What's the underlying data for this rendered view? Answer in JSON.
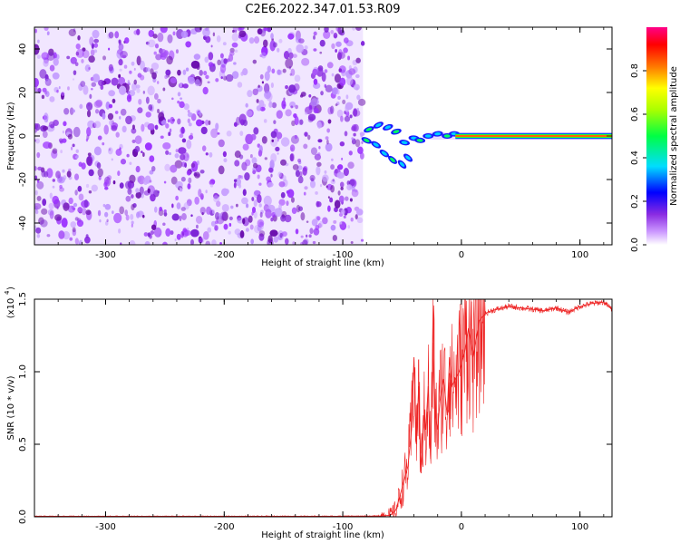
{
  "title": "C2E6.2022.347.01.53.R09",
  "colors": {
    "snr_line": "#ee2222",
    "noise_purple": "#8a2be2",
    "axis": "#000000"
  },
  "chart_data": [
    {
      "type": "heatmap",
      "xlabel": "Height of straight line (km)",
      "ylabel": "Frequency (Hz)",
      "xlim": [
        -360,
        127
      ],
      "ylim": [
        -50,
        50
      ],
      "xticks": [
        -300,
        -200,
        -100,
        0,
        100
      ],
      "yticks": [
        -40,
        -20,
        0,
        20,
        40
      ],
      "xtick_labels": [
        "-300",
        "-200",
        "-100",
        "0",
        "100"
      ],
      "ytick_labels": [
        "-40",
        "-20",
        "0",
        "20",
        "40"
      ],
      "noise_region_x": [
        -360,
        -83
      ],
      "signal_line": {
        "x_from": -5,
        "x_to": 127,
        "freq": 0
      },
      "colorbar": {
        "label": "Normalized spectral amplitude",
        "range": [
          0.0,
          1.0
        ],
        "ticks": [
          0.0,
          0.2,
          0.4,
          0.6,
          0.8
        ],
        "tick_labels": [
          "0.0",
          "0.2",
          "0.4",
          "0.6",
          "0.8"
        ],
        "colormap": "rainbow"
      }
    },
    {
      "type": "line",
      "xlabel": "Height of straight line (km)",
      "ylabel": "SNR (10 * v/v)",
      "y_multiplier": "(x10",
      "y_multiplier_exp": "4",
      "xlim": [
        -360,
        127
      ],
      "ylim": [
        0,
        1.5
      ],
      "xticks": [
        -300,
        -200,
        -100,
        0,
        100
      ],
      "yticks": [
        0.0,
        0.5,
        1.0,
        1.5
      ],
      "xtick_labels": [
        "-300",
        "-200",
        "-100",
        "0",
        "100"
      ],
      "ytick_labels": [
        "0.0",
        "0.5",
        "1.0",
        "1.5"
      ],
      "series": [
        {
          "x": [
            -360,
            -300,
            -200,
            -100,
            -70,
            -60,
            -55,
            -50,
            -45,
            -42,
            -40,
            -38,
            -36,
            -34,
            -32,
            -30,
            -28,
            -26,
            -24,
            -22,
            -20,
            -18,
            -15,
            -12,
            -10,
            -8,
            -5,
            -2,
            0,
            3,
            6,
            10,
            15,
            20,
            25,
            30,
            40,
            50,
            60,
            70,
            80,
            90,
            100,
            110,
            120,
            127
          ],
          "y": [
            0.003,
            0.003,
            0.003,
            0.004,
            0.005,
            0.01,
            0.05,
            0.2,
            0.35,
            0.6,
            1.1,
            0.5,
            0.9,
            0.3,
            0.7,
            0.6,
            0.9,
            0.4,
            1.2,
            0.7,
            0.6,
            0.8,
            0.95,
            0.7,
            1.1,
            0.9,
            0.95,
            1.0,
            1.05,
            1.15,
            1.3,
            1.1,
            1.35,
            1.4,
            1.42,
            1.43,
            1.45,
            1.44,
            1.43,
            1.42,
            1.44,
            1.41,
            1.45,
            1.47,
            1.48,
            1.43
          ]
        }
      ]
    }
  ]
}
